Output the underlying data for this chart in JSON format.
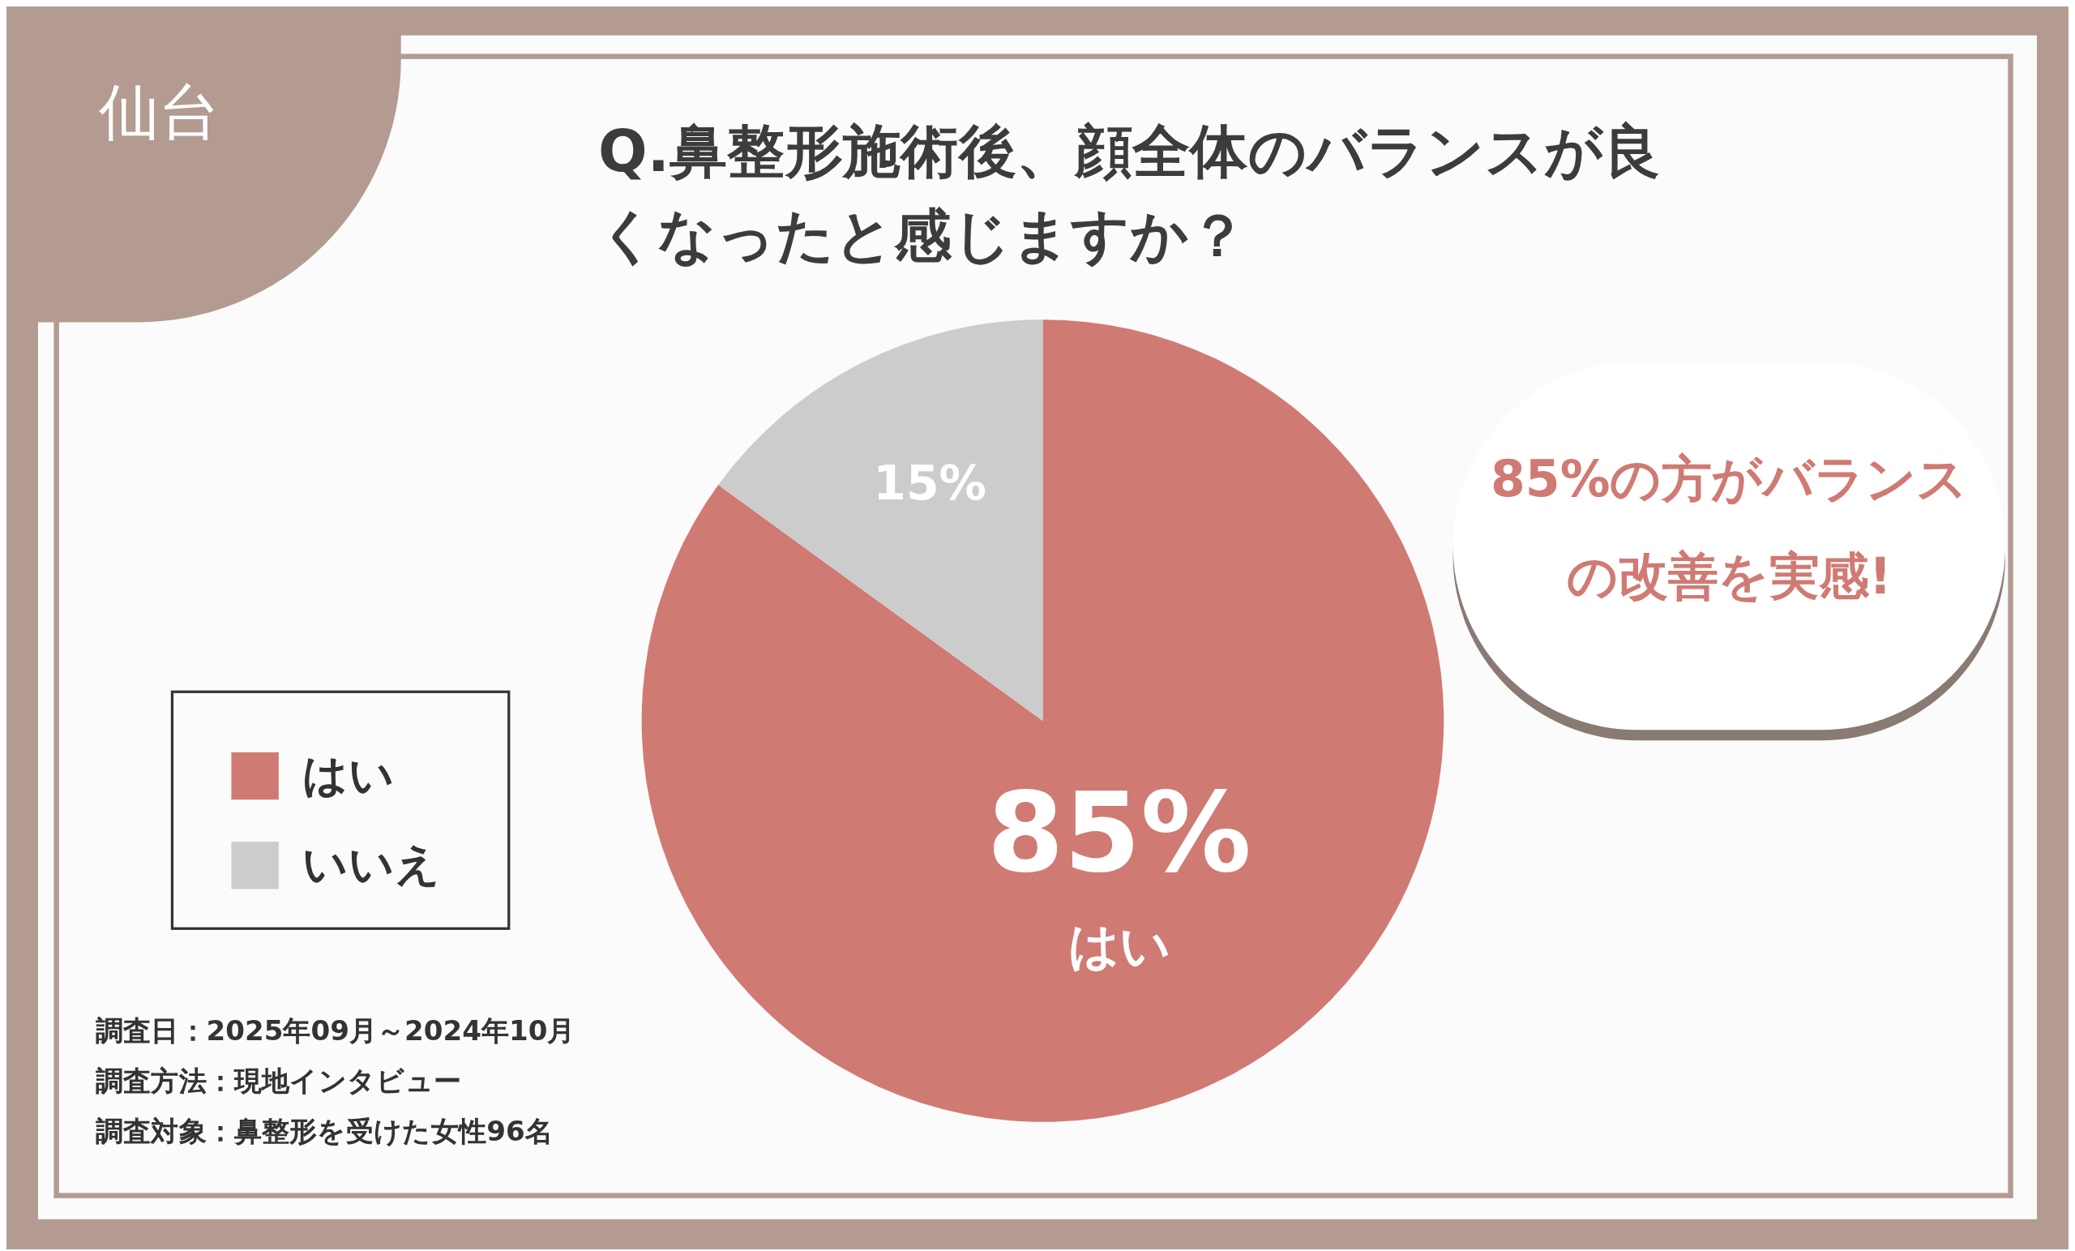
{
  "chart_data": {
    "type": "pie",
    "title": "Q.鼻整形施術後、顔全体のバランスが良くなったと感じますか？",
    "categories": [
      "はい",
      "いいえ"
    ],
    "values": [
      85,
      15
    ],
    "colors": [
      "#d07a74",
      "#cccccc"
    ],
    "value_labels": [
      "85%\nはい",
      "15%"
    ],
    "legend": "bottom left",
    "annotations": [
      "仙台",
      "85%の方がバランスの改善を実感!",
      "調査日：2025年09月～2024年10月",
      "調査方法：現地インタビュー",
      "調査対象：鼻整形を受けた女性96名"
    ]
  }
}
